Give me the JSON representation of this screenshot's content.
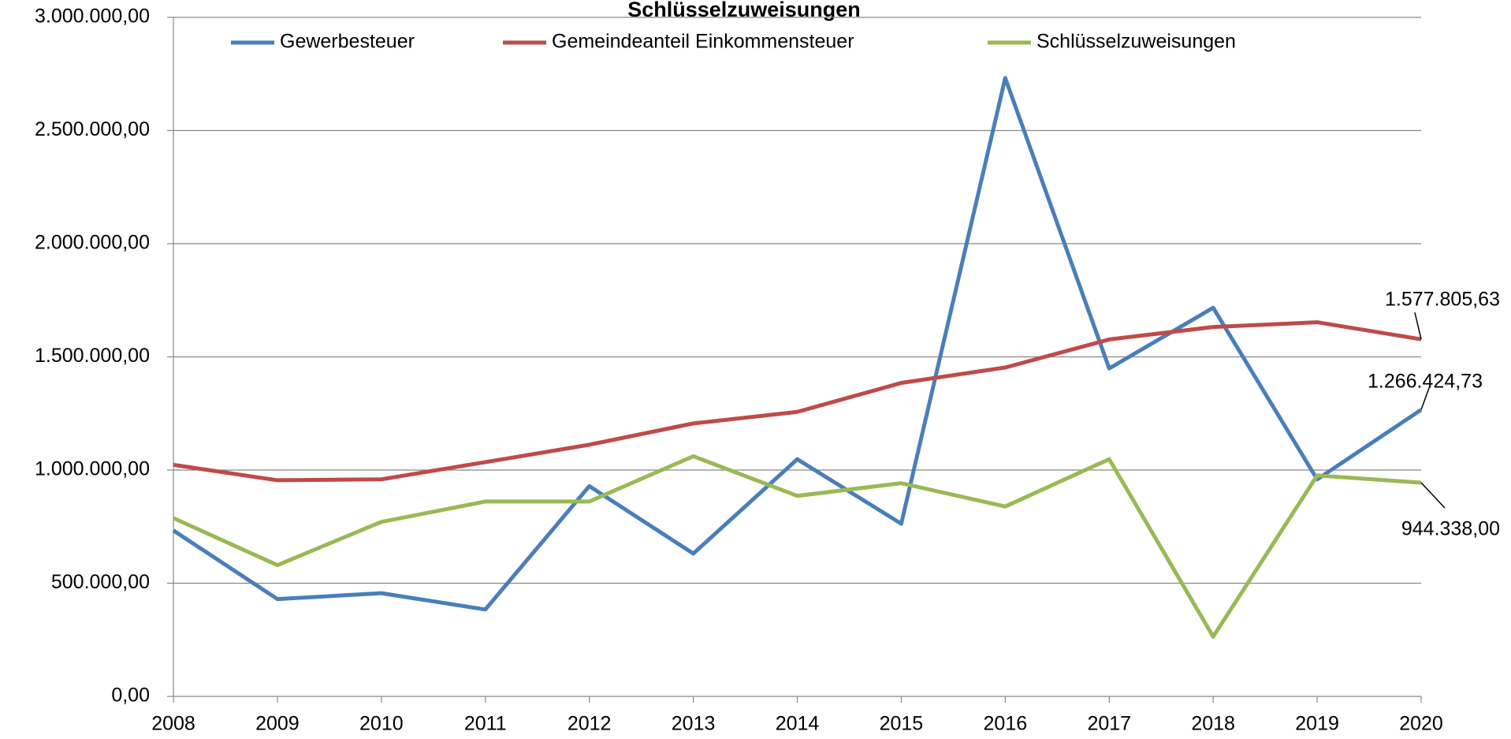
{
  "chart_data": {
    "type": "line",
    "title": "Schlüsselzuweisungen",
    "x": [
      2008,
      2009,
      2010,
      2011,
      2012,
      2013,
      2014,
      2015,
      2016,
      2017,
      2018,
      2019,
      2020
    ],
    "xlim": [
      2008,
      2020
    ],
    "xticks": [
      2008,
      2009,
      2010,
      2011,
      2012,
      2013,
      2014,
      2015,
      2016,
      2017,
      2018,
      2019,
      2020
    ],
    "ylim": [
      0,
      3000000
    ],
    "yticks": [
      {
        "value": 0,
        "label": "0,00"
      },
      {
        "value": 500000,
        "label": "500.000,00"
      },
      {
        "value": 1000000,
        "label": "1.000.000,00"
      },
      {
        "value": 1500000,
        "label": "1.500.000,00"
      },
      {
        "value": 2000000,
        "label": "2.000.000,00"
      },
      {
        "value": 2500000,
        "label": "2.500.000,00"
      },
      {
        "value": 3000000,
        "label": "3.000.000,00"
      }
    ],
    "grid": true,
    "legend": "top",
    "series": [
      {
        "name": "Gewerbesteuer",
        "color": "#4a7ebb",
        "values": [
          733000,
          430000,
          456000,
          384000,
          929000,
          631000,
          1048000,
          763000,
          2732000,
          1449000,
          1717000,
          959000,
          1266424.73
        ],
        "value_labels": [
          null,
          null,
          null,
          null,
          null,
          null,
          null,
          null,
          null,
          null,
          null,
          null,
          "1.266.424,73"
        ]
      },
      {
        "name": "Gemeindeanteil Einkommensteuer",
        "color": "#be4b48",
        "values": [
          1023000,
          955000,
          959000,
          1035000,
          1112000,
          1206000,
          1257000,
          1385000,
          1453000,
          1577000,
          1632000,
          1653000,
          1577805.63
        ],
        "value_labels": [
          null,
          null,
          null,
          null,
          null,
          null,
          null,
          null,
          null,
          null,
          null,
          null,
          "1.577.805,63"
        ]
      },
      {
        "name": "Schlüsselzuweisungen",
        "color": "#98b954",
        "values": [
          788000,
          580000,
          771000,
          861000,
          861000,
          1061000,
          886000,
          942000,
          839000,
          1048000,
          264000,
          976000,
          944338
        ],
        "value_labels": [
          null,
          null,
          null,
          null,
          null,
          null,
          null,
          null,
          null,
          null,
          null,
          null,
          "944.338,00"
        ]
      }
    ]
  }
}
